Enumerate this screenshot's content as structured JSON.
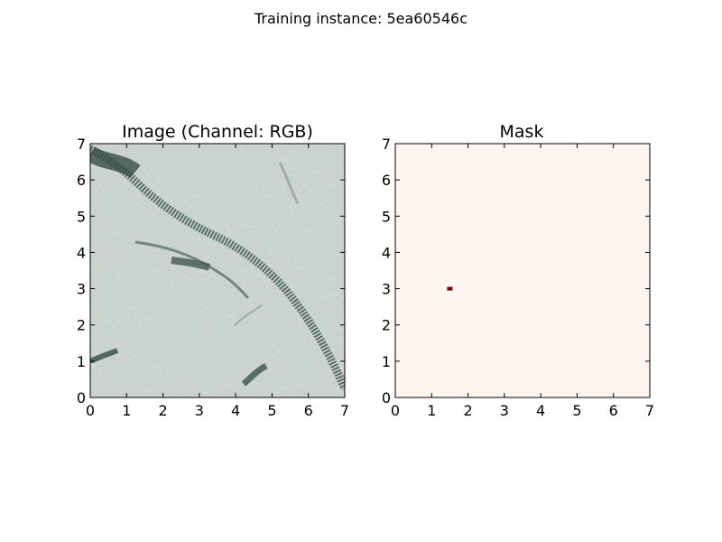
{
  "figure": {
    "suptitle": "Training instance: 5ea60546c"
  },
  "chart_data": [
    {
      "type": "heatmap",
      "title": "Image (Channel: RGB)",
      "xlabel": "",
      "ylabel": "",
      "xlim": [
        0,
        7
      ],
      "ylim": [
        0,
        7
      ],
      "xticks": [
        "0",
        "1",
        "2",
        "3",
        "4",
        "5",
        "6",
        "7"
      ],
      "yticks": [
        "0",
        "1",
        "2",
        "3",
        "4",
        "5",
        "6",
        "7"
      ],
      "content": "grayscale-greenish RGB image tile",
      "base_color": "#cfd8d2",
      "dark_color": "#2e4640"
    },
    {
      "type": "heatmap",
      "title": "Mask",
      "xlabel": "",
      "ylabel": "",
      "xlim": [
        0,
        7
      ],
      "ylim": [
        0,
        7
      ],
      "xticks": [
        "0",
        "1",
        "2",
        "3",
        "4",
        "5",
        "6",
        "7"
      ],
      "yticks": [
        "0",
        "1",
        "2",
        "3",
        "4",
        "5",
        "6",
        "7"
      ],
      "background_value": 0,
      "background_color": "#fff5f0",
      "mask_color": "#67000d",
      "mask_pixels": [
        {
          "x": 1.5,
          "y": 3.0
        }
      ]
    }
  ]
}
